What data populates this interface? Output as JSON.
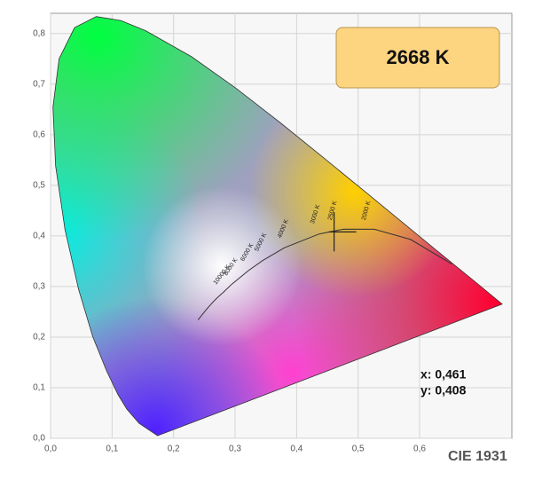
{
  "chart_data": {
    "type": "scatter",
    "badge": "2668 K",
    "caption": "CIE 1931",
    "x": [
      0.461
    ],
    "values": [
      0.408
    ],
    "x_labels": [
      "x: 0,461"
    ],
    "value_labels": [
      "y: 0,408"
    ],
    "isotherm_labels": [
      "2000 K",
      "2500 K",
      "3000 K",
      "4000 K",
      "5000 K",
      "6000 K",
      "8000 K",
      "10000 K"
    ],
    "xlim": [
      0,
      0.75
    ],
    "ylim": [
      0,
      0.84
    ],
    "xticks": [
      {
        "value": 0,
        "label": "0,0"
      },
      {
        "value": 0.1,
        "label": "0,1"
      },
      {
        "value": 0.2,
        "label": "0,2"
      },
      {
        "value": 0.3,
        "label": "0,3"
      },
      {
        "value": 0.4,
        "label": "0,4"
      },
      {
        "value": 0.5,
        "label": "0,5"
      },
      {
        "value": 0.6,
        "label": "0,6"
      }
    ],
    "yticks": [
      {
        "value": 0,
        "label": "0,0"
      },
      {
        "value": 0.1,
        "label": "0,1"
      },
      {
        "value": 0.2,
        "label": "0,2"
      },
      {
        "value": 0.3,
        "label": "0,3"
      },
      {
        "value": 0.4,
        "label": "0,4"
      },
      {
        "value": 0.5,
        "label": "0,5"
      },
      {
        "value": 0.6,
        "label": "0,6"
      },
      {
        "value": 0.7,
        "label": "0,7"
      },
      {
        "value": 0.8,
        "label": "0,8"
      }
    ],
    "grid": true,
    "color": "#222222"
  }
}
